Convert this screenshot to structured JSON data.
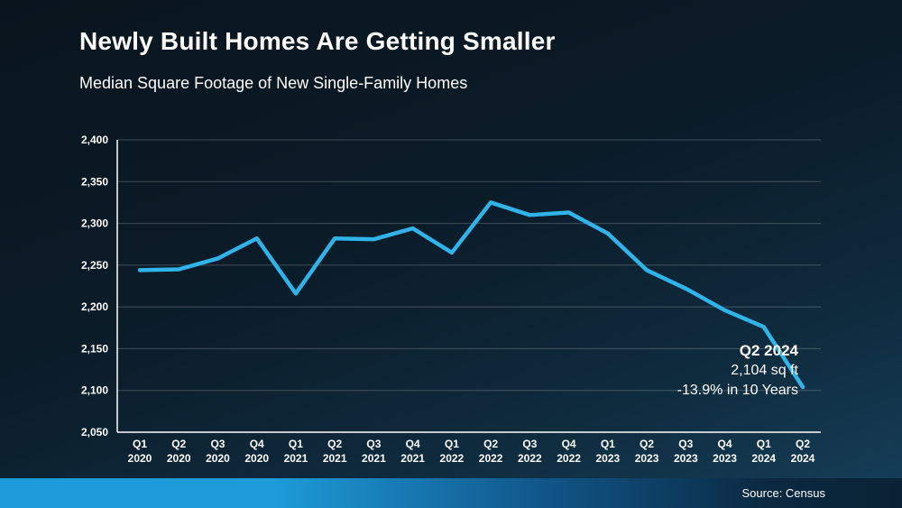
{
  "title": "Newly Built Homes Are Getting Smaller",
  "subtitle": "Median Square Footage of New Single-Family Homes",
  "annotation": {
    "line1": "Q2 2024",
    "line2": "2,104 sq ft",
    "line3": "-13.9% in 10 Years"
  },
  "footer": {
    "source": "Source: Census"
  },
  "colors": {
    "line": "#2fb3e8",
    "gridline": "rgba(255,255,255,0.22)",
    "axis": "#ffffff",
    "text": "#ffffff",
    "footer_left": "#1d9cd9",
    "footer_right": "#0a2234"
  },
  "chart_data": {
    "type": "line",
    "title": "Newly Built Homes Are Getting Smaller",
    "subtitle": "Median Square Footage of New Single-Family Homes",
    "xlabel": "",
    "ylabel": "",
    "ylim": [
      2050,
      2400
    ],
    "grid": true,
    "legend": "none",
    "yticks": [
      2050,
      2100,
      2150,
      2200,
      2250,
      2300,
      2350,
      2400
    ],
    "ytick_labels": [
      "2,050",
      "2,100",
      "2,150",
      "2,200",
      "2,250",
      "2,300",
      "2,350",
      "2,400"
    ],
    "categories": [
      {
        "q": "Q1",
        "year": "2020"
      },
      {
        "q": "Q2",
        "year": "2020"
      },
      {
        "q": "Q3",
        "year": "2020"
      },
      {
        "q": "Q4",
        "year": "2020"
      },
      {
        "q": "Q1",
        "year": "2021"
      },
      {
        "q": "Q2",
        "year": "2021"
      },
      {
        "q": "Q3",
        "year": "2021"
      },
      {
        "q": "Q4",
        "year": "2021"
      },
      {
        "q": "Q1",
        "year": "2022"
      },
      {
        "q": "Q2",
        "year": "2022"
      },
      {
        "q": "Q3",
        "year": "2022"
      },
      {
        "q": "Q4",
        "year": "2022"
      },
      {
        "q": "Q1",
        "year": "2023"
      },
      {
        "q": "Q2",
        "year": "2023"
      },
      {
        "q": "Q3",
        "year": "2023"
      },
      {
        "q": "Q4",
        "year": "2023"
      },
      {
        "q": "Q1",
        "year": "2024"
      },
      {
        "q": "Q2",
        "year": "2024"
      }
    ],
    "series": [
      {
        "name": "Median Square Footage of New Single-Family Homes",
        "values": [
          2244,
          2245,
          2258,
          2282,
          2216,
          2282,
          2281,
          2294,
          2265,
          2325,
          2310,
          2313,
          2288,
          2244,
          2222,
          2196,
          2176,
          2104
        ]
      }
    ],
    "annotation": "Q2 2024 — 2,104 sq ft — -13.9% in 10 Years"
  }
}
